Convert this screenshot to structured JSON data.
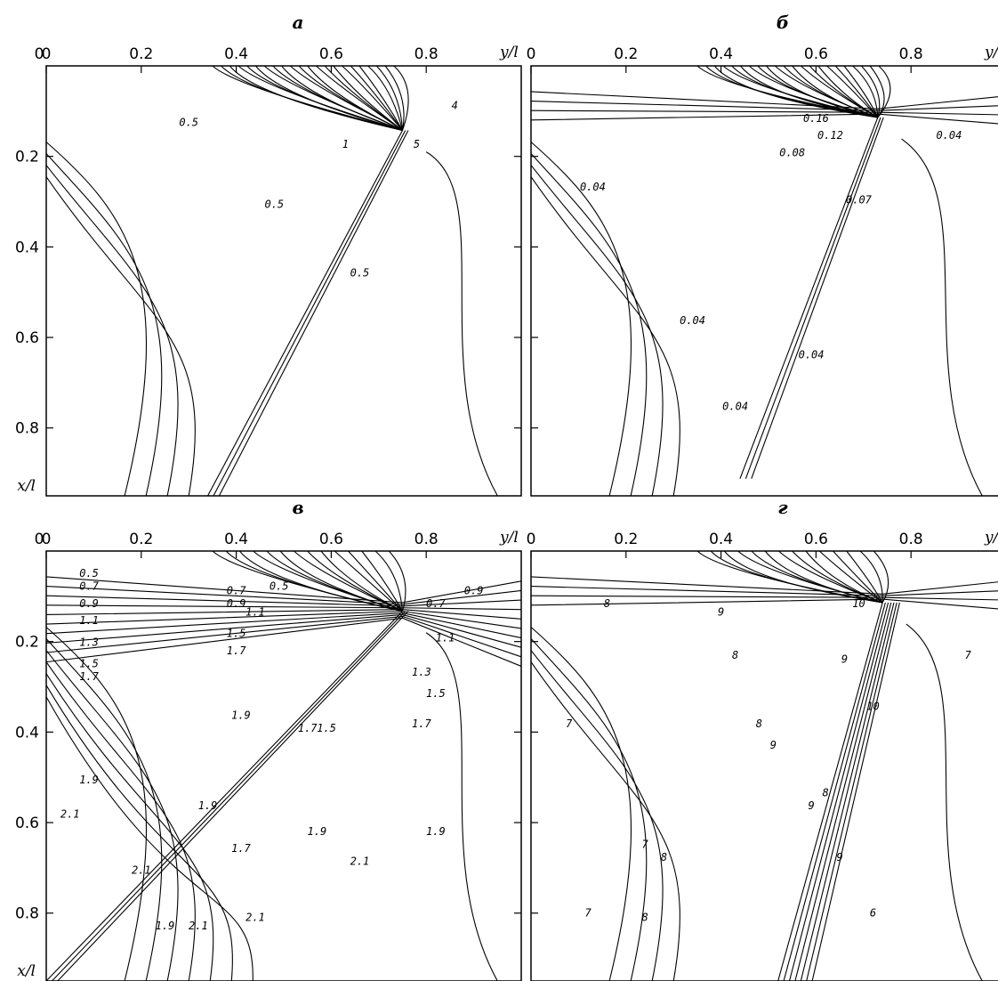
{
  "chart_data": [
    {
      "type": "contour",
      "title": "а",
      "xlabel": "y/l",
      "ylabel": "x/l",
      "x_ticks": [
        "0",
        "0.2",
        "0.4",
        "0.6",
        "0.8"
      ],
      "y_ticks": [
        "0.2",
        "0.4",
        "0.6",
        "0.8"
      ],
      "xlim": [
        0,
        1
      ],
      "ylim": [
        0,
        0.95
      ],
      "contour_labels": [
        {
          "text": "0.5",
          "y": 0.3,
          "x": 0.14
        },
        {
          "text": "0.5",
          "y": 0.48,
          "x": 0.33
        },
        {
          "text": "0.5",
          "y": 0.66,
          "x": 0.49
        },
        {
          "text": "1",
          "y": 0.63,
          "x": 0.19
        },
        {
          "text": "4",
          "y": 0.86,
          "x": 0.1
        },
        {
          "text": "5",
          "y": 0.78,
          "x": 0.19
        }
      ]
    },
    {
      "type": "contour",
      "title": "б",
      "xlabel": "y/l",
      "ylabel": "x/l",
      "x_ticks": [
        "0",
        "0.2",
        "0.4",
        "0.6",
        "0.8"
      ],
      "y_ticks": [
        "0.2",
        "0.4",
        "0.6",
        "0.8"
      ],
      "xlim": [
        0,
        1
      ],
      "ylim": [
        0,
        0.95
      ],
      "contour_labels": [
        {
          "text": "0.16",
          "y": 0.6,
          "x": 0.13
        },
        {
          "text": "0.12",
          "y": 0.63,
          "x": 0.17
        },
        {
          "text": "0.08",
          "y": 0.55,
          "x": 0.21
        },
        {
          "text": "0.04",
          "y": 0.13,
          "x": 0.29
        },
        {
          "text": "0.04",
          "y": 0.88,
          "x": 0.17
        },
        {
          "text": "0.07",
          "y": 0.69,
          "x": 0.32
        },
        {
          "text": "0.04",
          "y": 0.34,
          "x": 0.6
        },
        {
          "text": "0.04",
          "y": 0.59,
          "x": 0.68
        },
        {
          "text": "0.04",
          "y": 0.43,
          "x": 0.8
        }
      ]
    },
    {
      "type": "contour",
      "title": "в",
      "xlabel": "y/l",
      "ylabel": "x/l",
      "x_ticks": [
        "0",
        "0.2",
        "0.4",
        "0.6",
        "0.8"
      ],
      "y_ticks": [
        "0.2",
        "0.4",
        "0.6",
        "0.8"
      ],
      "xlim": [
        0,
        1
      ],
      "ylim": [
        0,
        0.95
      ],
      "contour_labels": [
        {
          "text": "0.5",
          "y": 0.09,
          "x": 0.06
        },
        {
          "text": "0.7",
          "y": 0.09,
          "x": 0.09
        },
        {
          "text": "0.9",
          "y": 0.09,
          "x": 0.13
        },
        {
          "text": "1.1",
          "y": 0.09,
          "x": 0.17
        },
        {
          "text": "1.3",
          "y": 0.09,
          "x": 0.22
        },
        {
          "text": "1.5",
          "y": 0.09,
          "x": 0.27
        },
        {
          "text": "1.7",
          "y": 0.09,
          "x": 0.3
        },
        {
          "text": "0.7",
          "y": 0.4,
          "x": 0.1
        },
        {
          "text": "0.5",
          "y": 0.49,
          "x": 0.09
        },
        {
          "text": "0.9",
          "y": 0.4,
          "x": 0.13
        },
        {
          "text": "1.1",
          "y": 0.44,
          "x": 0.15
        },
        {
          "text": "1.5",
          "y": 0.4,
          "x": 0.2
        },
        {
          "text": "1.7",
          "y": 0.4,
          "x": 0.24
        },
        {
          "text": "1.1",
          "y": 0.84,
          "x": 0.21
        },
        {
          "text": "1.3",
          "y": 0.79,
          "x": 0.29
        },
        {
          "text": "1.5",
          "y": 0.82,
          "x": 0.34
        },
        {
          "text": "1.7",
          "y": 0.79,
          "x": 0.41
        },
        {
          "text": "1.9",
          "y": 0.41,
          "x": 0.39
        },
        {
          "text": "1.7",
          "y": 0.55,
          "x": 0.42
        },
        {
          "text": "1.5",
          "y": 0.59,
          "x": 0.42
        },
        {
          "text": "1.9",
          "y": 0.09,
          "x": 0.54
        },
        {
          "text": "2.1",
          "y": 0.05,
          "x": 0.62
        },
        {
          "text": "1.9",
          "y": 0.34,
          "x": 0.6
        },
        {
          "text": "1.7",
          "y": 0.41,
          "x": 0.7
        },
        {
          "text": "1.9",
          "y": 0.57,
          "x": 0.66
        },
        {
          "text": "1.9",
          "y": 0.82,
          "x": 0.66
        },
        {
          "text": "2.1",
          "y": 0.2,
          "x": 0.75
        },
        {
          "text": "2.1",
          "y": 0.66,
          "x": 0.73
        },
        {
          "text": "2.1",
          "y": 0.44,
          "x": 0.86
        },
        {
          "text": "1.9",
          "y": 0.25,
          "x": 0.88
        },
        {
          "text": "0.7",
          "y": 0.82,
          "x": 0.13
        },
        {
          "text": "0.9",
          "y": 0.9,
          "x": 0.1
        },
        {
          "text": "2.1",
          "y": 0.32,
          "x": 0.88
        }
      ]
    },
    {
      "type": "contour",
      "title": "г",
      "xlabel": "y/l",
      "ylabel": "x/l",
      "x_ticks": [
        "0",
        "0.2",
        "0.4",
        "0.6",
        "0.8"
      ],
      "y_ticks": [
        "0.2",
        "0.4",
        "0.6",
        "0.8"
      ],
      "xlim": [
        0,
        1
      ],
      "ylim": [
        0,
        0.95
      ],
      "contour_labels": [
        {
          "text": "8",
          "y": 0.16,
          "x": 0.13
        },
        {
          "text": "9",
          "y": 0.4,
          "x": 0.15
        },
        {
          "text": "10",
          "y": 0.69,
          "x": 0.13
        },
        {
          "text": "8",
          "y": 0.43,
          "x": 0.25
        },
        {
          "text": "9",
          "y": 0.66,
          "x": 0.26
        },
        {
          "text": "7",
          "y": 0.92,
          "x": 0.25
        },
        {
          "text": "10",
          "y": 0.72,
          "x": 0.37
        },
        {
          "text": "7",
          "y": 0.08,
          "x": 0.41
        },
        {
          "text": "8",
          "y": 0.48,
          "x": 0.41
        },
        {
          "text": "9",
          "y": 0.51,
          "x": 0.46
        },
        {
          "text": "9",
          "y": 0.59,
          "x": 0.6
        },
        {
          "text": "8",
          "y": 0.62,
          "x": 0.57
        },
        {
          "text": "7",
          "y": 0.24,
          "x": 0.69
        },
        {
          "text": "8",
          "y": 0.28,
          "x": 0.72
        },
        {
          "text": "9",
          "y": 0.65,
          "x": 0.72
        },
        {
          "text": "7",
          "y": 0.12,
          "x": 0.85
        },
        {
          "text": "8",
          "y": 0.24,
          "x": 0.86
        },
        {
          "text": "6",
          "y": 0.72,
          "x": 0.85
        }
      ]
    }
  ]
}
